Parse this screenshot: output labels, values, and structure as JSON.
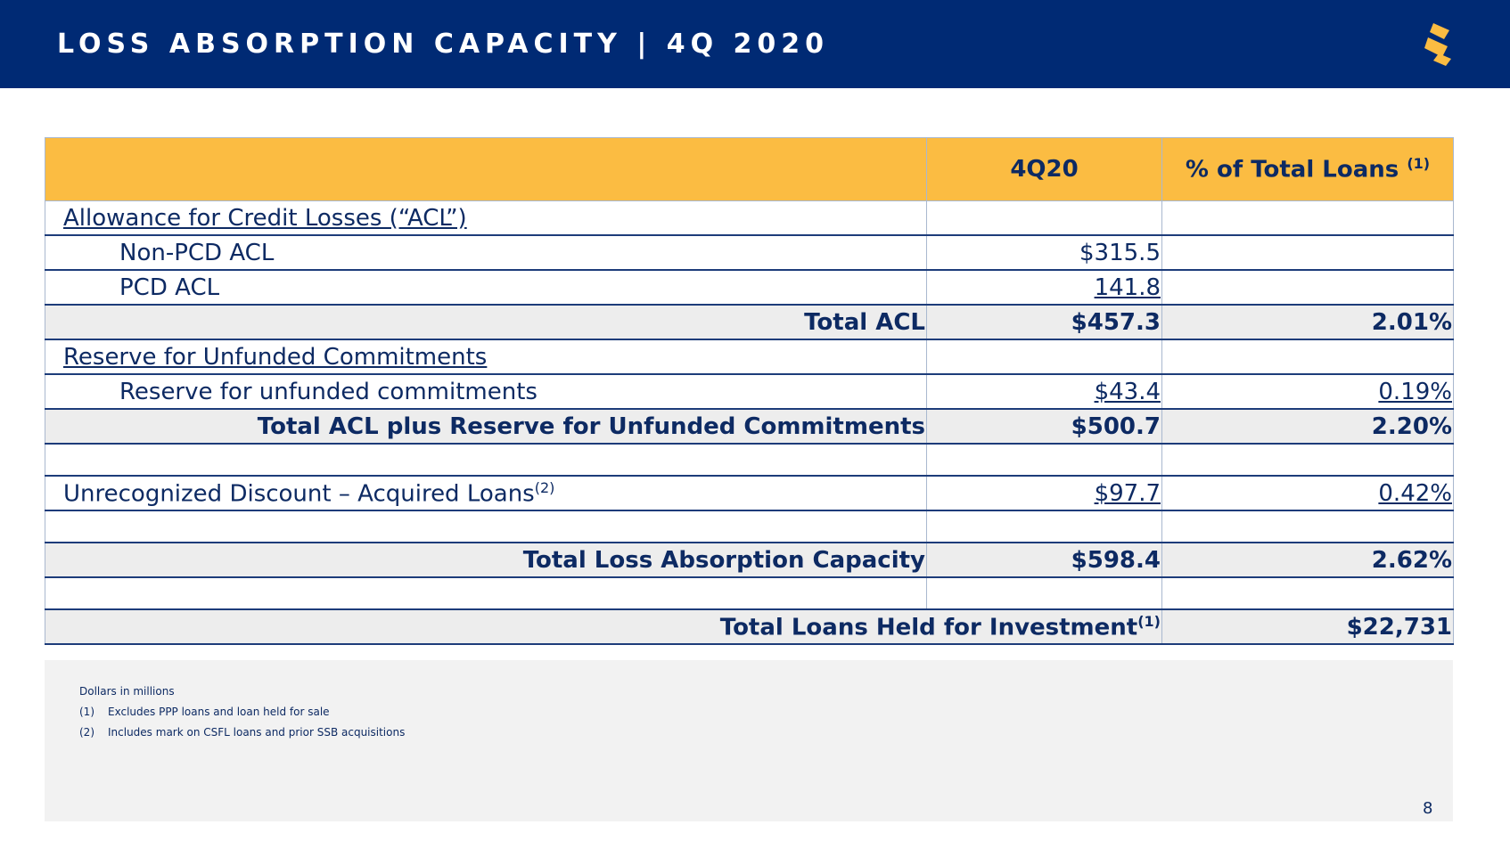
{
  "header": {
    "title": "LOSS ABSORPTION CAPACITY | 4Q 2020",
    "logo_icon": "stylized-s-logo-icon",
    "accent_color": "#fbbc42",
    "bg_color": "#002a74"
  },
  "table": {
    "columns": [
      "",
      "4Q20",
      "% of Total Loans",
      "(1)"
    ],
    "rows": {
      "acl_header": "Allowance for Credit Losses (“ACL”)",
      "non_pcd_label": "Non-PCD ACL",
      "non_pcd_value": "$315.5",
      "pcd_label": "PCD ACL",
      "pcd_value": "141.8",
      "total_acl_label": "Total ACL",
      "total_acl_value": "$457.3",
      "total_acl_pct": "2.01%",
      "reserve_header": "Reserve for Unfunded Commitments",
      "reserve_label": "Reserve for unfunded commitments",
      "reserve_value": "$43.4",
      "reserve_pct": "0.19%",
      "total_plus_label": "Total ACL plus Reserve for Unfunded Commitments",
      "total_plus_value": "$500.7",
      "total_plus_pct": "2.20%",
      "discount_label": "Unrecognized Discount – Acquired Loans",
      "discount_sup": "(2)",
      "discount_value": "$97.7",
      "discount_pct": "0.42%",
      "total_loss_label": "Total Loss Absorption Capacity",
      "total_loss_value": "$598.4",
      "total_loss_pct": "2.62%",
      "loans_label": "Total Loans Held for Investment",
      "loans_sup": "(1)",
      "loans_value": "$22,731"
    }
  },
  "notes": {
    "units": "Dollars in millions",
    "n1_marker": "(1)",
    "n1_text": "Excludes PPP loans and loan held for sale",
    "n2_marker": "(2)",
    "n2_text": "Includes mark on CSFL loans and prior SSB acquisitions",
    "page_number": "8"
  }
}
